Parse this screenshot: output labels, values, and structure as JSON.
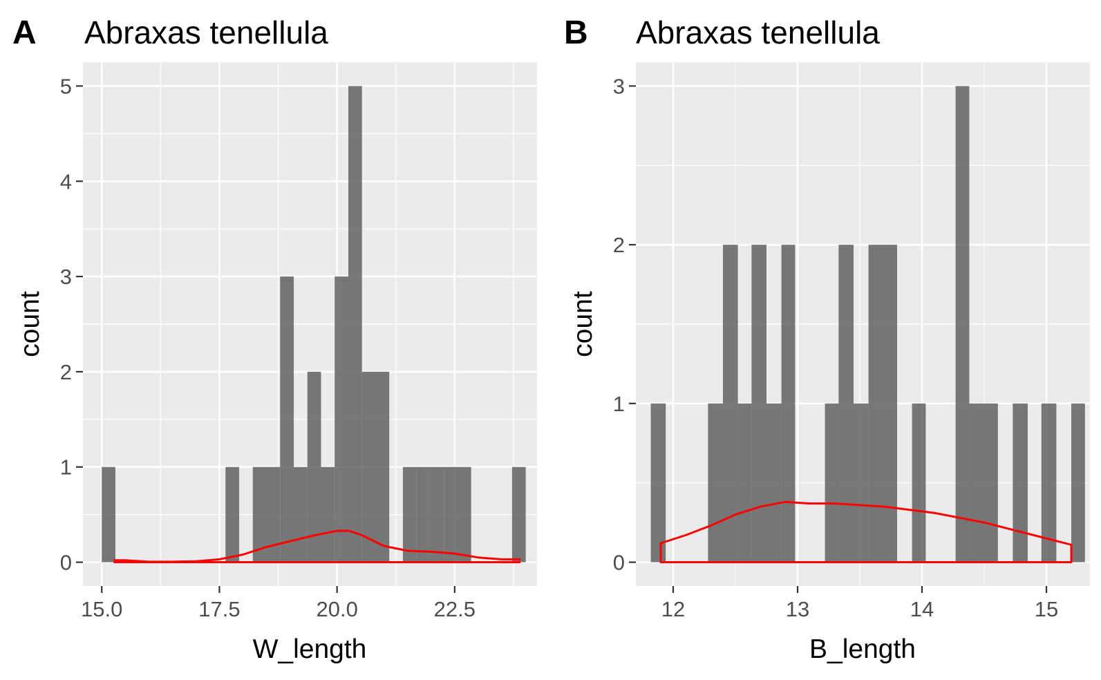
{
  "chart_data": [
    {
      "type": "histogram",
      "tag": "A",
      "title": "Abraxas tenellula",
      "xlabel": "W_length",
      "ylabel": "count",
      "xlim": [
        14.6,
        24.25
      ],
      "ylim": [
        -0.25,
        5.25
      ],
      "x_ticks": [
        15.0,
        17.5,
        20.0,
        22.5
      ],
      "x_tick_labels": [
        "15.0",
        "17.5",
        "20.0",
        "22.5"
      ],
      "x_minor_ticks": [
        16.25,
        18.75,
        21.25,
        23.75
      ],
      "y_ticks": [
        0,
        1,
        2,
        3,
        4,
        5
      ],
      "y_tick_labels": [
        "0",
        "1",
        "2",
        "3",
        "4",
        "5"
      ],
      "y_minor_ticks": [
        0.5,
        1.5,
        2.5,
        3.5,
        4.5
      ],
      "bins": [
        {
          "x0": 15.0,
          "x1": 15.29,
          "count": 1
        },
        {
          "x0": 17.63,
          "x1": 17.92,
          "count": 1
        },
        {
          "x0": 18.21,
          "x1": 18.5,
          "count": 1
        },
        {
          "x0": 18.5,
          "x1": 18.79,
          "count": 1
        },
        {
          "x0": 18.79,
          "x1": 19.08,
          "count": 3
        },
        {
          "x0": 19.08,
          "x1": 19.37,
          "count": 1
        },
        {
          "x0": 19.37,
          "x1": 19.66,
          "count": 2
        },
        {
          "x0": 19.66,
          "x1": 19.95,
          "count": 1
        },
        {
          "x0": 19.95,
          "x1": 20.24,
          "count": 3
        },
        {
          "x0": 20.24,
          "x1": 20.53,
          "count": 5
        },
        {
          "x0": 20.53,
          "x1": 20.82,
          "count": 2
        },
        {
          "x0": 20.82,
          "x1": 21.11,
          "count": 2
        },
        {
          "x0": 21.4,
          "x1": 21.69,
          "count": 1
        },
        {
          "x0": 21.69,
          "x1": 21.98,
          "count": 1
        },
        {
          "x0": 21.98,
          "x1": 22.27,
          "count": 1
        },
        {
          "x0": 22.27,
          "x1": 22.56,
          "count": 1
        },
        {
          "x0": 22.56,
          "x1": 22.85,
          "count": 1
        },
        {
          "x0": 23.72,
          "x1": 24.01,
          "count": 1
        }
      ],
      "density": {
        "color": "#ff0000",
        "x": [
          15.25,
          15.5,
          16.0,
          16.5,
          17.0,
          17.5,
          18.0,
          18.5,
          19.0,
          19.5,
          20.0,
          20.25,
          20.5,
          21.0,
          21.5,
          22.0,
          22.5,
          23.0,
          23.5,
          23.9
        ],
        "y": [
          0.02,
          0.02,
          0.005,
          0.005,
          0.01,
          0.03,
          0.08,
          0.16,
          0.22,
          0.28,
          0.33,
          0.33,
          0.29,
          0.17,
          0.12,
          0.11,
          0.09,
          0.05,
          0.03,
          0.03
        ]
      }
    },
    {
      "type": "histogram",
      "tag": "B",
      "title": "Abraxas tenellula",
      "xlabel": "B_length",
      "ylabel": "count",
      "xlim": [
        11.7,
        15.35
      ],
      "ylim": [
        -0.15,
        3.15
      ],
      "x_ticks": [
        12,
        13,
        14,
        15
      ],
      "x_tick_labels": [
        "12",
        "13",
        "14",
        "15"
      ],
      "x_minor_ticks": [
        12.5,
        13.5,
        14.5
      ],
      "y_ticks": [
        0,
        1,
        2,
        3
      ],
      "y_tick_labels": [
        "0",
        "1",
        "2",
        "3"
      ],
      "y_minor_ticks": [
        0.5,
        1.5,
        2.5
      ],
      "bins": [
        {
          "x0": 11.82,
          "x1": 11.94,
          "count": 1
        },
        {
          "x0": 12.28,
          "x1": 12.4,
          "count": 1
        },
        {
          "x0": 12.4,
          "x1": 12.52,
          "count": 2
        },
        {
          "x0": 12.52,
          "x1": 12.63,
          "count": 1
        },
        {
          "x0": 12.63,
          "x1": 12.75,
          "count": 2
        },
        {
          "x0": 12.75,
          "x1": 12.87,
          "count": 1
        },
        {
          "x0": 12.87,
          "x1": 12.98,
          "count": 2
        },
        {
          "x0": 13.22,
          "x1": 13.33,
          "count": 1
        },
        {
          "x0": 13.33,
          "x1": 13.45,
          "count": 2
        },
        {
          "x0": 13.45,
          "x1": 13.57,
          "count": 1
        },
        {
          "x0": 13.57,
          "x1": 13.8,
          "count": 2
        },
        {
          "x0": 13.92,
          "x1": 14.03,
          "count": 1
        },
        {
          "x0": 14.27,
          "x1": 14.38,
          "count": 3
        },
        {
          "x0": 14.38,
          "x1": 14.61,
          "count": 1
        },
        {
          "x0": 14.73,
          "x1": 14.85,
          "count": 1
        },
        {
          "x0": 14.96,
          "x1": 15.08,
          "count": 1
        },
        {
          "x0": 15.2,
          "x1": 15.31,
          "count": 1
        }
      ],
      "density": {
        "color": "#ff0000",
        "closed_to_baseline": true,
        "x": [
          11.9,
          12.1,
          12.3,
          12.5,
          12.7,
          12.9,
          13.1,
          13.3,
          13.5,
          13.7,
          13.9,
          14.1,
          14.3,
          14.5,
          14.7,
          14.9,
          15.1,
          15.2
        ],
        "y": [
          0.12,
          0.17,
          0.23,
          0.3,
          0.35,
          0.38,
          0.37,
          0.37,
          0.36,
          0.35,
          0.33,
          0.31,
          0.28,
          0.25,
          0.21,
          0.17,
          0.13,
          0.11
        ]
      }
    }
  ]
}
